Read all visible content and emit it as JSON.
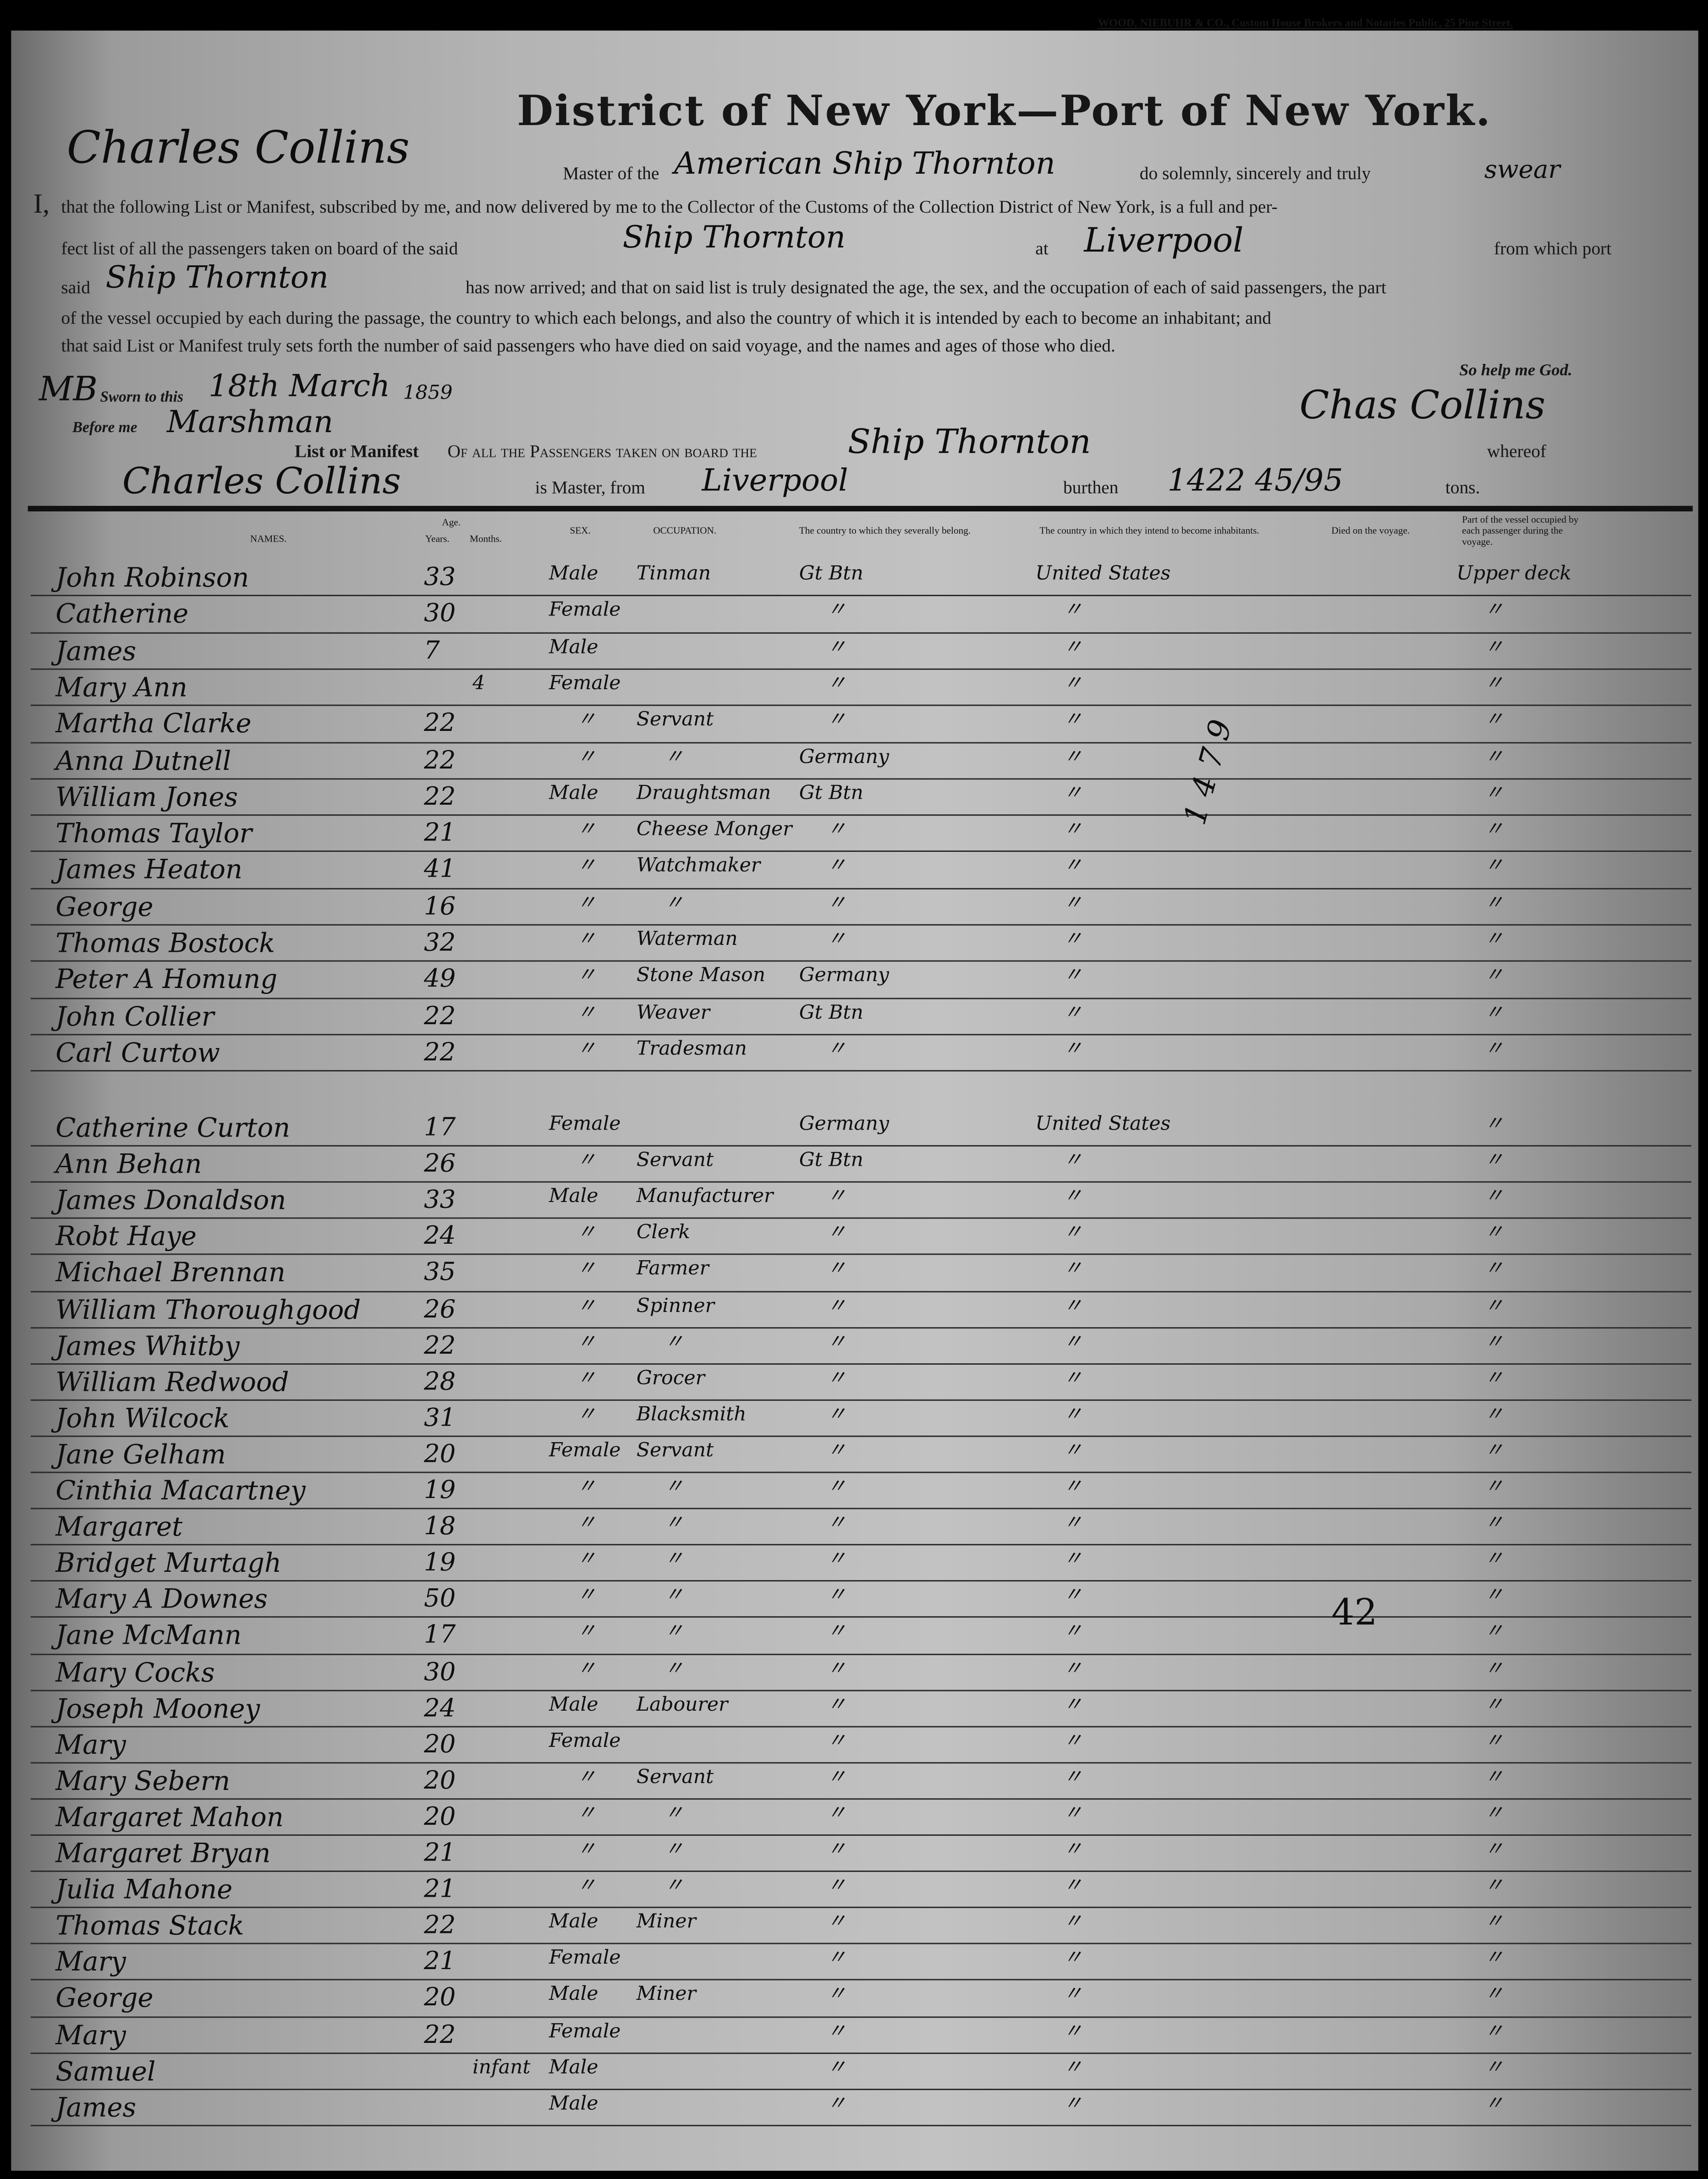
{
  "printer_imprint": "WOOD, NIEBUHR & CO., Custom House Brokers and Notaries Public, 25 Pine Street.",
  "title": "District of New York—Port of New York.",
  "oath": {
    "i": "I,",
    "master_name": "Charles Collins",
    "master_of": "Master of the",
    "vessel_desc": "American Ship Thornton",
    "swear_text": "do solemnly, sincerely and truly",
    "swear_word": "swear",
    "line2": "that the following List or Manifest, subscribed by me, and now delivered by me to the Collector of the Customs of the Collection District of New York, is a full and per-",
    "line3a": "fect list of all the passengers taken on board of the said",
    "ship1": "Ship Thornton",
    "at": "at",
    "port": "Liverpool",
    "from_which_port": "from which port",
    "said": "said",
    "ship2": "Ship Thornton",
    "line4": "has now arrived; and that on said list is truly designated the age, the sex, and the occupation of each of said passengers, the part",
    "line5": "of the vessel occupied by each during the passage, the country to which each belongs, and also the country of which it is intended by each to become an inhabitant; and",
    "line6": "that said List or Manifest truly sets forth the number of said passengers who have died on said voyage, and the names and ages of those who died.",
    "so_help": "So help me God.",
    "sworn": "Sworn to this",
    "sworn_date": "18th March",
    "sworn_year": "1859",
    "before_me": "Before me",
    "official_sig": "Marshman",
    "initials": "MB",
    "signature": "Chas Collins"
  },
  "list_header": {
    "list_of": "List or Manifest",
    "of_all": "Of all the Passengers taken on board the",
    "ship": "Ship Thornton",
    "whereof": "whereof",
    "master_name": "Charles Collins",
    "is_master_from": "is Master, from",
    "from_port": "Liverpool",
    "burthen": "burthen",
    "tons_value": "1422 45/95",
    "tons": "tons."
  },
  "columns": {
    "names": "NAMES.",
    "age": "Age.",
    "years": "Years.",
    "months": "Months.",
    "sex": "SEX.",
    "occupation": "OCCUPATION.",
    "belong": "The country to which they severally belong.",
    "inhabit": "The country in which they intend to become inhabitants.",
    "died": "Died on the voyage.",
    "vessel": "Part of the vessel occupied by each passenger during the voyage."
  },
  "section1": [
    [
      "John Robinson",
      "33",
      "",
      "Male",
      "Tinman",
      "Gt Btn",
      "United States",
      "Upper deck"
    ],
    [
      "Catherine",
      "30",
      "",
      "Female",
      "",
      "〃",
      "〃",
      "〃"
    ],
    [
      "James",
      "7",
      "",
      "Male",
      "",
      "〃",
      "〃",
      "〃"
    ],
    [
      "Mary Ann",
      "",
      "4",
      "Female",
      "",
      "〃",
      "〃",
      "〃"
    ],
    [
      "Martha Clarke",
      "22",
      "",
      "〃",
      "Servant",
      "〃",
      "〃",
      "〃"
    ],
    [
      "Anna Dutnell",
      "22",
      "",
      "〃",
      "〃",
      "Germany",
      "〃",
      "〃"
    ],
    [
      "William Jones",
      "22",
      "",
      "Male",
      "Draughtsman",
      "Gt Btn",
      "〃",
      "〃"
    ],
    [
      "Thomas Taylor",
      "21",
      "",
      "〃",
      "Cheese Monger",
      "〃",
      "〃",
      "〃"
    ],
    [
      "James Heaton",
      "41",
      "",
      "〃",
      "Watchmaker",
      "〃",
      "〃",
      "〃"
    ],
    [
      "George",
      "16",
      "",
      "〃",
      "〃",
      "〃",
      "〃",
      "〃"
    ],
    [
      "Thomas Bostock",
      "32",
      "",
      "〃",
      "Waterman",
      "〃",
      "〃",
      "〃"
    ],
    [
      "Peter A Homung",
      "49",
      "",
      "〃",
      "Stone Mason",
      "Germany",
      "〃",
      "〃"
    ],
    [
      "John Collier",
      "22",
      "",
      "〃",
      "Weaver",
      "Gt Btn",
      "〃",
      "〃"
    ],
    [
      "Carl Curtow",
      "22",
      "",
      "〃",
      "Tradesman",
      "〃",
      "〃",
      "〃"
    ]
  ],
  "section2": [
    [
      "Catherine Curton",
      "17",
      "",
      "Female",
      "",
      "Germany",
      "United States",
      "〃"
    ],
    [
      "Ann Behan",
      "26",
      "",
      "〃",
      "Servant",
      "Gt Btn",
      "〃",
      "〃"
    ],
    [
      "James Donaldson",
      "33",
      "",
      "Male",
      "Manufacturer",
      "〃",
      "〃",
      "〃"
    ],
    [
      "Robt Haye",
      "24",
      "",
      "〃",
      "Clerk",
      "〃",
      "〃",
      "〃"
    ],
    [
      "Michael Brennan",
      "35",
      "",
      "〃",
      "Farmer",
      "〃",
      "〃",
      "〃"
    ],
    [
      "William Thoroughgood",
      "26",
      "",
      "〃",
      "Spinner",
      "〃",
      "〃",
      "〃"
    ],
    [
      "James Whitby",
      "22",
      "",
      "〃",
      "〃",
      "〃",
      "〃",
      "〃"
    ],
    [
      "William Redwood",
      "28",
      "",
      "〃",
      "Grocer",
      "〃",
      "〃",
      "〃"
    ],
    [
      "John Wilcock",
      "31",
      "",
      "〃",
      "Blacksmith",
      "〃",
      "〃",
      "〃"
    ],
    [
      "Jane Gelham",
      "20",
      "",
      "Female",
      "Servant",
      "〃",
      "〃",
      "〃"
    ],
    [
      "Cinthia Macartney",
      "19",
      "",
      "〃",
      "〃",
      "〃",
      "〃",
      "〃"
    ],
    [
      "Margaret",
      "18",
      "",
      "〃",
      "〃",
      "〃",
      "〃",
      "〃"
    ],
    [
      "Bridget Murtagh",
      "19",
      "",
      "〃",
      "〃",
      "〃",
      "〃",
      "〃"
    ],
    [
      "Mary A Downes",
      "50",
      "",
      "〃",
      "〃",
      "〃",
      "〃",
      "〃"
    ],
    [
      "Jane McMann",
      "17",
      "",
      "〃",
      "〃",
      "〃",
      "〃",
      "〃"
    ],
    [
      "Mary Cocks",
      "30",
      "",
      "〃",
      "〃",
      "〃",
      "〃",
      "〃"
    ],
    [
      "Joseph Mooney",
      "24",
      "",
      "Male",
      "Labourer",
      "〃",
      "〃",
      "〃"
    ],
    [
      "Mary",
      "20",
      "",
      "Female",
      "",
      "〃",
      "〃",
      "〃"
    ],
    [
      "Mary Sebern",
      "20",
      "",
      "〃",
      "Servant",
      "〃",
      "〃",
      "〃"
    ],
    [
      "Margaret Mahon",
      "20",
      "",
      "〃",
      "〃",
      "〃",
      "〃",
      "〃"
    ],
    [
      "Margaret Bryan",
      "21",
      "",
      "〃",
      "〃",
      "〃",
      "〃",
      "〃"
    ],
    [
      "Julia Mahone",
      "21",
      "",
      "〃",
      "〃",
      "〃",
      "〃",
      "〃"
    ],
    [
      "Thomas Stack",
      "22",
      "",
      "Male",
      "Miner",
      "〃",
      "〃",
      "〃"
    ],
    [
      "Mary",
      "21",
      "",
      "Female",
      "",
      "〃",
      "〃",
      "〃"
    ],
    [
      "George",
      "20",
      "",
      "Male",
      "Miner",
      "〃",
      "〃",
      "〃"
    ],
    [
      "Mary",
      "22",
      "",
      "Female",
      "",
      "〃",
      "〃",
      "〃"
    ],
    [
      "Samuel",
      "",
      "infant",
      "Male",
      "",
      "〃",
      "〃",
      "〃"
    ],
    [
      "James",
      "",
      "",
      "Male",
      "",
      "〃",
      "〃",
      "〃"
    ]
  ],
  "margin_note": "42",
  "tally_note": "1 4 7 9"
}
